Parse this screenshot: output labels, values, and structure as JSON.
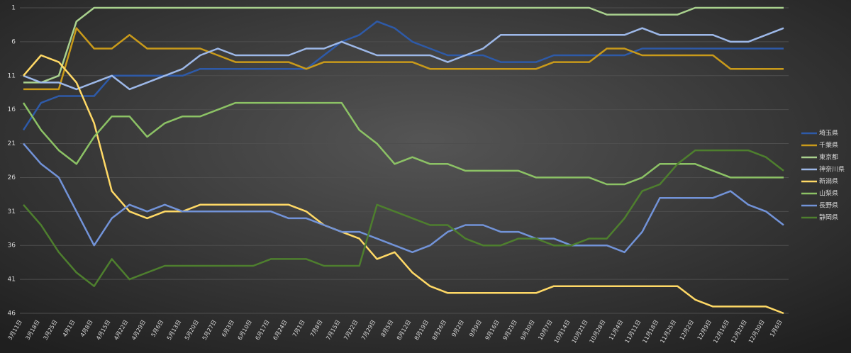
{
  "chart_data": {
    "type": "line",
    "categories": [
      "3月11日",
      "3月18日",
      "3月25日",
      "4月1日",
      "4月8日",
      "4月15日",
      "4月22日",
      "4月29日",
      "5月6日",
      "5月13日",
      "5月20日",
      "5月27日",
      "6月3日",
      "6月10日",
      "6月17日",
      "6月24日",
      "7月1日",
      "7月8日",
      "7月15日",
      "7月22日",
      "7月29日",
      "8月5日",
      "8月12日",
      "8月19日",
      "8月26日",
      "9月2日",
      "9月9日",
      "9月16日",
      "9月23日",
      "9月30日",
      "10月7日",
      "10月14日",
      "10月21日",
      "10月28日",
      "11月4日",
      "11月11日",
      "11月18日",
      "11月25日",
      "12月2日",
      "12月9日",
      "12月16日",
      "12月23日",
      "12月30日",
      "1月6日"
    ],
    "ylim": [
      1,
      46
    ],
    "y_reversed": true,
    "yticks": [
      1,
      6,
      11,
      16,
      21,
      26,
      31,
      36,
      41,
      46
    ],
    "grid": true,
    "legend": "right",
    "series": [
      {
        "name": "埼玉県",
        "color": "#2e5aa8",
        "values": [
          19,
          15,
          14,
          14,
          14,
          11,
          11,
          11,
          11,
          11,
          10,
          10,
          10,
          10,
          10,
          10,
          10,
          8,
          6,
          5,
          3,
          4,
          6,
          7,
          8,
          8,
          8,
          9,
          9,
          9,
          8,
          8,
          8,
          8,
          8,
          7,
          7,
          7,
          7,
          7,
          7,
          7,
          7,
          7
        ]
      },
      {
        "name": "千葉県",
        "color": "#c99a1a",
        "values": [
          13,
          13,
          13,
          4,
          7,
          7,
          5,
          7,
          7,
          7,
          7,
          8,
          9,
          9,
          9,
          9,
          10,
          9,
          9,
          9,
          9,
          9,
          9,
          10,
          10,
          10,
          10,
          10,
          10,
          10,
          9,
          9,
          9,
          7,
          7,
          8,
          8,
          8,
          8,
          8,
          10,
          10,
          10,
          10
        ]
      },
      {
        "name": "東京都",
        "color": "#a9d18e",
        "values": [
          12,
          12,
          11,
          3,
          1,
          1,
          1,
          1,
          1,
          1,
          1,
          1,
          1,
          1,
          1,
          1,
          1,
          1,
          1,
          1,
          1,
          1,
          1,
          1,
          1,
          1,
          1,
          1,
          1,
          1,
          1,
          1,
          1,
          2,
          2,
          2,
          2,
          2,
          1,
          1,
          1,
          1,
          1,
          1
        ]
      },
      {
        "name": "神奈川県",
        "color": "#9db8e8",
        "values": [
          11,
          12,
          12,
          13,
          12,
          11,
          13,
          12,
          11,
          10,
          8,
          7,
          8,
          8,
          8,
          8,
          7,
          7,
          6,
          7,
          8,
          8,
          8,
          8,
          9,
          8,
          7,
          5,
          5,
          5,
          5,
          5,
          5,
          5,
          5,
          4,
          5,
          5,
          5,
          5,
          6,
          6,
          5,
          4
        ]
      },
      {
        "name": "新潟県",
        "color": "#ffd966",
        "values": [
          11,
          8,
          9,
          12,
          18,
          28,
          31,
          32,
          31,
          31,
          30,
          30,
          30,
          30,
          30,
          30,
          31,
          33,
          34,
          35,
          38,
          37,
          40,
          42,
          43,
          43,
          43,
          43,
          43,
          43,
          42,
          42,
          42,
          42,
          42,
          42,
          42,
          42,
          44,
          45,
          45,
          45,
          45,
          46
        ]
      },
      {
        "name": "山梨県",
        "color": "#8cc265",
        "values": [
          15,
          19,
          22,
          24,
          20,
          17,
          17,
          20,
          18,
          17,
          17,
          16,
          15,
          15,
          15,
          15,
          15,
          15,
          15,
          19,
          21,
          24,
          23,
          24,
          24,
          25,
          25,
          25,
          25,
          26,
          26,
          26,
          26,
          27,
          27,
          26,
          24,
          24,
          24,
          25,
          26,
          26,
          26,
          26
        ]
      },
      {
        "name": "長野県",
        "color": "#7293d8",
        "values": [
          21,
          24,
          26,
          31,
          36,
          32,
          30,
          31,
          30,
          31,
          31,
          31,
          31,
          31,
          31,
          32,
          32,
          33,
          34,
          34,
          35,
          36,
          37,
          36,
          34,
          33,
          33,
          34,
          34,
          35,
          35,
          36,
          36,
          36,
          37,
          34,
          29,
          29,
          29,
          29,
          28,
          30,
          31,
          33
        ]
      },
      {
        "name": "静岡県",
        "color": "#4e7f2e",
        "values": [
          30,
          33,
          37,
          40,
          42,
          38,
          41,
          40,
          39,
          39,
          39,
          39,
          39,
          39,
          38,
          38,
          38,
          39,
          39,
          39,
          30,
          31,
          32,
          33,
          33,
          35,
          36,
          36,
          35,
          35,
          36,
          36,
          35,
          35,
          32,
          28,
          27,
          24,
          22,
          22,
          22,
          22,
          23,
          25
        ]
      }
    ]
  }
}
